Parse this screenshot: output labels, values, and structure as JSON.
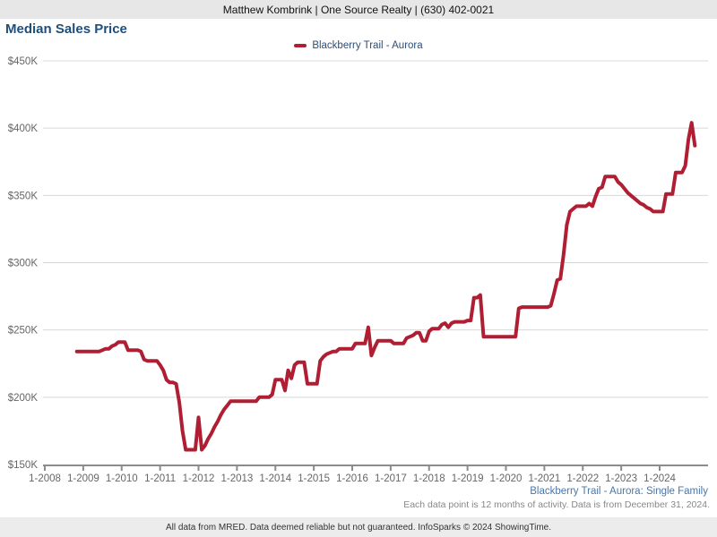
{
  "header": {
    "agent_info": "Matthew Kombrink | One Source Realty | (630) 402-0021"
  },
  "title": "Median Sales Price",
  "legend": {
    "series_label": "Blackberry Trail - Aurora"
  },
  "footer": {
    "series_link": "Blackberry Trail - Aurora: Single Family",
    "data_note": "Each data point is 12 months of activity. Data is from December 31, 2024.",
    "disclaimer": "All data from MRED. Data deemed reliable but not guaranteed. InfoSparks © 2024 ShowingTime."
  },
  "colors": {
    "line": "#b01e33",
    "title_text": "#1f4e79",
    "legend_text": "#2d4d76",
    "link_text": "#4a76a8",
    "note_text": "#888888",
    "grid": "#d8d8d8",
    "axis": "#8c8c8c",
    "tick_label": "#666666",
    "band_bg": "#e7e7e7"
  },
  "chart_data": {
    "type": "line",
    "title": "Median Sales Price",
    "grid": true,
    "legend_position": "top-center",
    "unit": "USD thousands",
    "y_axis": {
      "min": 150,
      "max": 450,
      "tick_step": 50,
      "tick_labels": [
        "$150K",
        "$200K",
        "$250K",
        "$300K",
        "$350K",
        "$400K",
        "$450K"
      ]
    },
    "x_axis": {
      "start_year": 2008,
      "end_year": 2024,
      "tick_labels": [
        "1-2008",
        "1-2009",
        "1-2010",
        "1-2011",
        "1-2012",
        "1-2013",
        "1-2014",
        "1-2015",
        "1-2016",
        "1-2017",
        "1-2018",
        "1-2019",
        "1-2020",
        "1-2021",
        "1-2022",
        "1-2023",
        "1-2024"
      ]
    },
    "series": [
      {
        "name": "Blackberry Trail - Aurora",
        "color": "#b01e33",
        "points": [
          [
            "2008-11",
            234
          ],
          [
            "2008-12",
            234
          ],
          [
            "2009-01",
            234
          ],
          [
            "2009-02",
            234
          ],
          [
            "2009-03",
            234
          ],
          [
            "2009-04",
            234
          ],
          [
            "2009-05",
            234
          ],
          [
            "2009-06",
            234
          ],
          [
            "2009-07",
            235
          ],
          [
            "2009-08",
            236
          ],
          [
            "2009-09",
            236
          ],
          [
            "2009-10",
            238
          ],
          [
            "2009-11",
            239
          ],
          [
            "2009-12",
            241
          ],
          [
            "2010-01",
            241
          ],
          [
            "2010-02",
            241
          ],
          [
            "2010-03",
            235
          ],
          [
            "2010-04",
            235
          ],
          [
            "2010-05",
            235
          ],
          [
            "2010-06",
            235
          ],
          [
            "2010-07",
            234
          ],
          [
            "2010-08",
            228
          ],
          [
            "2010-09",
            227
          ],
          [
            "2010-10",
            227
          ],
          [
            "2010-11",
            227
          ],
          [
            "2010-12",
            227
          ],
          [
            "2011-01",
            224
          ],
          [
            "2011-02",
            220
          ],
          [
            "2011-03",
            213
          ],
          [
            "2011-04",
            211
          ],
          [
            "2011-05",
            211
          ],
          [
            "2011-06",
            210
          ],
          [
            "2011-07",
            196
          ],
          [
            "2011-08",
            175
          ],
          [
            "2011-09",
            161
          ],
          [
            "2011-10",
            161
          ],
          [
            "2011-11",
            161
          ],
          [
            "2011-12",
            161
          ],
          [
            "2012-01",
            185
          ],
          [
            "2012-02",
            161
          ],
          [
            "2012-03",
            164
          ],
          [
            "2012-04",
            169
          ],
          [
            "2012-05",
            173
          ],
          [
            "2012-06",
            178
          ],
          [
            "2012-07",
            182
          ],
          [
            "2012-08",
            187
          ],
          [
            "2012-09",
            191
          ],
          [
            "2012-10",
            194
          ],
          [
            "2012-11",
            197
          ],
          [
            "2012-12",
            197
          ],
          [
            "2013-01",
            197
          ],
          [
            "2013-02",
            197
          ],
          [
            "2013-03",
            197
          ],
          [
            "2013-04",
            197
          ],
          [
            "2013-05",
            197
          ],
          [
            "2013-06",
            197
          ],
          [
            "2013-07",
            197
          ],
          [
            "2013-08",
            200
          ],
          [
            "2013-09",
            200
          ],
          [
            "2013-10",
            200
          ],
          [
            "2013-11",
            200
          ],
          [
            "2013-12",
            202
          ],
          [
            "2014-01",
            213
          ],
          [
            "2014-02",
            213
          ],
          [
            "2014-03",
            213
          ],
          [
            "2014-04",
            205
          ],
          [
            "2014-05",
            220
          ],
          [
            "2014-06",
            214
          ],
          [
            "2014-07",
            224
          ],
          [
            "2014-08",
            226
          ],
          [
            "2014-09",
            226
          ],
          [
            "2014-10",
            226
          ],
          [
            "2014-11",
            210
          ],
          [
            "2014-12",
            210
          ],
          [
            "2015-01",
            210
          ],
          [
            "2015-02",
            210
          ],
          [
            "2015-03",
            227
          ],
          [
            "2015-04",
            230
          ],
          [
            "2015-05",
            232
          ],
          [
            "2015-06",
            233
          ],
          [
            "2015-07",
            234
          ],
          [
            "2015-08",
            234
          ],
          [
            "2015-09",
            236
          ],
          [
            "2015-10",
            236
          ],
          [
            "2015-11",
            236
          ],
          [
            "2015-12",
            236
          ],
          [
            "2016-01",
            236
          ],
          [
            "2016-02",
            240
          ],
          [
            "2016-03",
            240
          ],
          [
            "2016-04",
            240
          ],
          [
            "2016-05",
            240
          ],
          [
            "2016-06",
            252
          ],
          [
            "2016-07",
            231
          ],
          [
            "2016-08",
            237
          ],
          [
            "2016-09",
            242
          ],
          [
            "2016-10",
            242
          ],
          [
            "2016-11",
            242
          ],
          [
            "2016-12",
            242
          ],
          [
            "2017-01",
            242
          ],
          [
            "2017-02",
            240
          ],
          [
            "2017-03",
            240
          ],
          [
            "2017-04",
            240
          ],
          [
            "2017-05",
            240
          ],
          [
            "2017-06",
            244
          ],
          [
            "2017-07",
            245
          ],
          [
            "2017-08",
            246
          ],
          [
            "2017-09",
            248
          ],
          [
            "2017-10",
            248
          ],
          [
            "2017-11",
            242
          ],
          [
            "2017-12",
            242
          ],
          [
            "2018-01",
            249
          ],
          [
            "2018-02",
            251
          ],
          [
            "2018-03",
            251
          ],
          [
            "2018-04",
            251
          ],
          [
            "2018-05",
            254
          ],
          [
            "2018-06",
            255
          ],
          [
            "2018-07",
            252
          ],
          [
            "2018-08",
            255
          ],
          [
            "2018-09",
            256
          ],
          [
            "2018-10",
            256
          ],
          [
            "2018-11",
            256
          ],
          [
            "2018-12",
            256
          ],
          [
            "2019-01",
            257
          ],
          [
            "2019-02",
            257
          ],
          [
            "2019-03",
            274
          ],
          [
            "2019-04",
            274
          ],
          [
            "2019-05",
            276
          ],
          [
            "2019-06",
            245
          ],
          [
            "2019-07",
            245
          ],
          [
            "2019-08",
            245
          ],
          [
            "2019-09",
            245
          ],
          [
            "2019-10",
            245
          ],
          [
            "2019-11",
            245
          ],
          [
            "2019-12",
            245
          ],
          [
            "2020-01",
            245
          ],
          [
            "2020-02",
            245
          ],
          [
            "2020-03",
            245
          ],
          [
            "2020-04",
            245
          ],
          [
            "2020-05",
            266
          ],
          [
            "2020-06",
            267
          ],
          [
            "2020-07",
            267
          ],
          [
            "2020-08",
            267
          ],
          [
            "2020-09",
            267
          ],
          [
            "2020-10",
            267
          ],
          [
            "2020-11",
            267
          ],
          [
            "2020-12",
            267
          ],
          [
            "2021-01",
            267
          ],
          [
            "2021-02",
            267
          ],
          [
            "2021-03",
            268
          ],
          [
            "2021-04",
            277
          ],
          [
            "2021-05",
            287
          ],
          [
            "2021-06",
            288
          ],
          [
            "2021-07",
            306
          ],
          [
            "2021-08",
            328
          ],
          [
            "2021-09",
            338
          ],
          [
            "2021-10",
            340
          ],
          [
            "2021-11",
            342
          ],
          [
            "2021-12",
            342
          ],
          [
            "2022-01",
            342
          ],
          [
            "2022-02",
            342
          ],
          [
            "2022-03",
            344
          ],
          [
            "2022-04",
            342
          ],
          [
            "2022-05",
            349
          ],
          [
            "2022-06",
            355
          ],
          [
            "2022-07",
            356
          ],
          [
            "2022-08",
            364
          ],
          [
            "2022-09",
            364
          ],
          [
            "2022-10",
            364
          ],
          [
            "2022-11",
            364
          ],
          [
            "2022-12",
            360
          ],
          [
            "2023-01",
            358
          ],
          [
            "2023-02",
            355
          ],
          [
            "2023-03",
            352
          ],
          [
            "2023-04",
            350
          ],
          [
            "2023-05",
            348
          ],
          [
            "2023-06",
            346
          ],
          [
            "2023-07",
            344
          ],
          [
            "2023-08",
            343
          ],
          [
            "2023-09",
            341
          ],
          [
            "2023-10",
            340
          ],
          [
            "2023-11",
            338
          ],
          [
            "2023-12",
            338
          ],
          [
            "2024-01",
            338
          ],
          [
            "2024-02",
            338
          ],
          [
            "2024-03",
            351
          ],
          [
            "2024-04",
            351
          ],
          [
            "2024-05",
            351
          ],
          [
            "2024-06",
            367
          ],
          [
            "2024-07",
            367
          ],
          [
            "2024-08",
            367
          ],
          [
            "2024-09",
            372
          ],
          [
            "2024-10",
            392
          ],
          [
            "2024-11",
            404
          ],
          [
            "2024-12",
            387
          ]
        ]
      }
    ]
  }
}
